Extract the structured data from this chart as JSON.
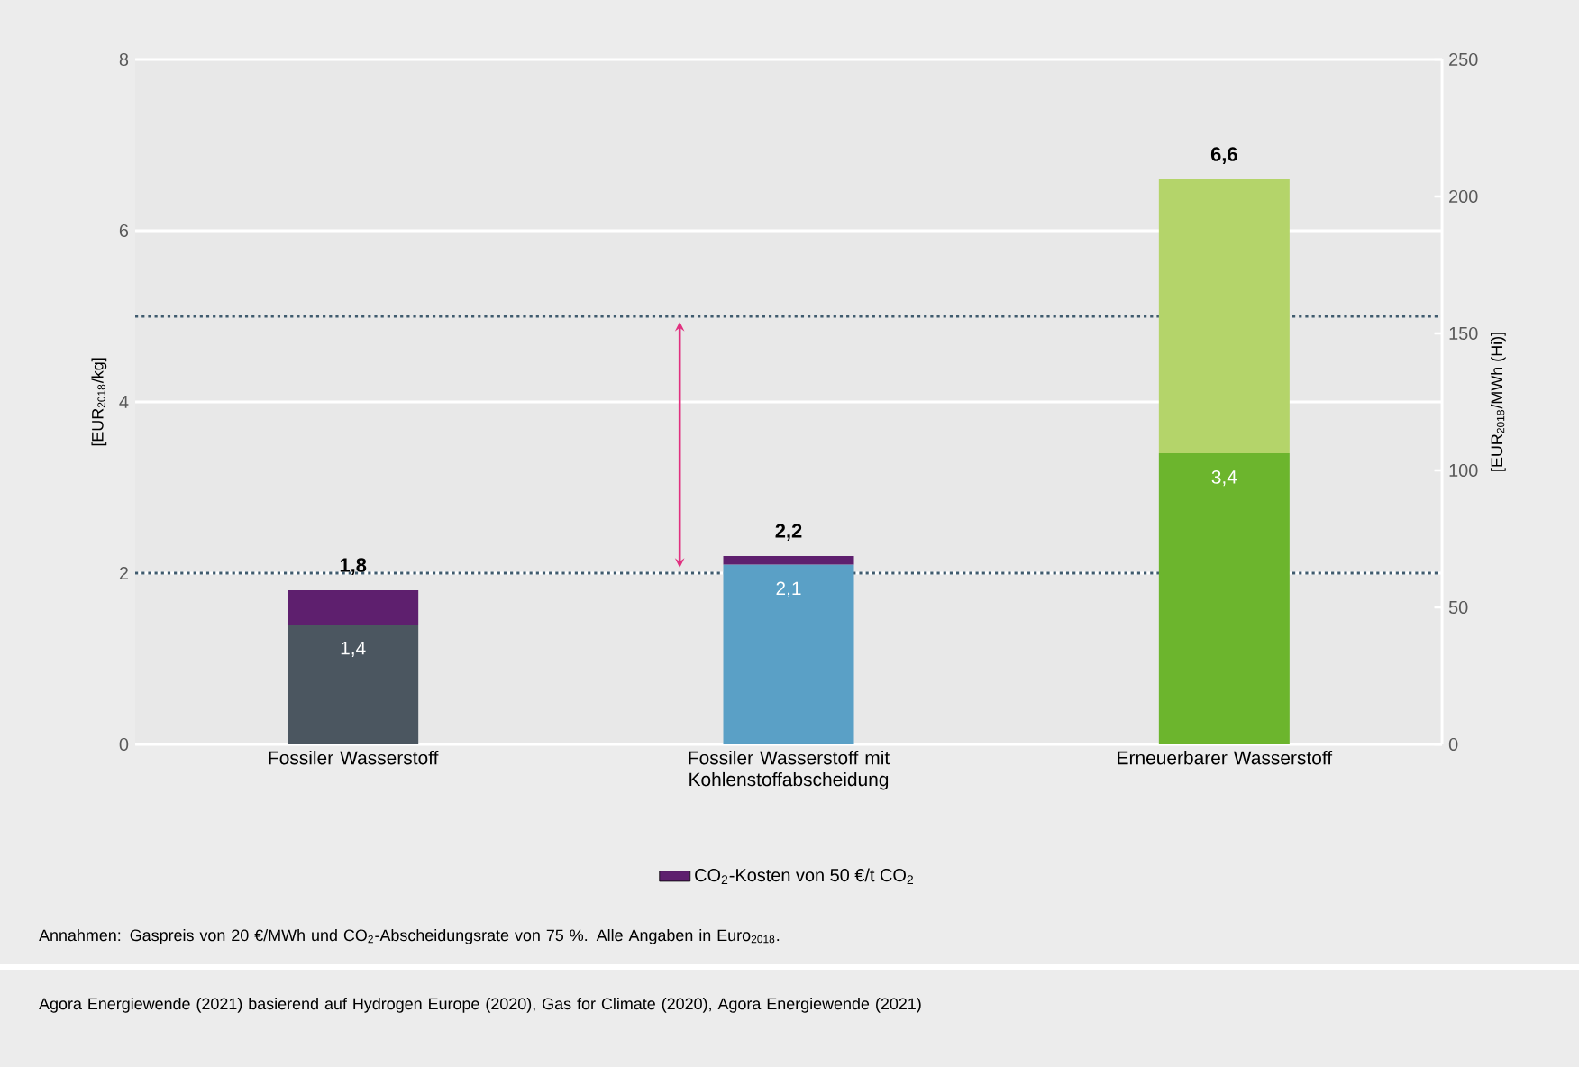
{
  "chart_data": {
    "type": "bar",
    "stacked": true,
    "categories": [
      "Fossiler Wasserstoff",
      "Fossiler Wasserstoff mit Kohlenstoffabscheidung",
      "Erneuerbarer Wasserstoff"
    ],
    "ylabel": "[EUR$_{2018}$/kg]",
    "y2label": "[EUR$_{2018}$/MWh (Hi)]",
    "series": [
      {
        "colors": [
          "#4b5660",
          "#5aa0c6",
          "#6cb52d"
        ],
        "values": [
          1.4,
          2.1,
          3.4
        ],
        "value_labels": [
          "1,4",
          "2,1",
          "3,4"
        ]
      },
      {
        "name": "CO$_{2}$-Kosten von 50 €/t CO$_{2}$",
        "color": "#5e1f6e",
        "values": [
          0.4,
          0.1,
          null
        ]
      },
      {
        "color": "#b4d46a",
        "values": [
          null,
          null,
          3.2
        ]
      }
    ],
    "totals": [
      "1,8",
      "2,2",
      "6,6"
    ],
    "ylim": [
      0,
      8
    ],
    "yticks": [
      0,
      2,
      4,
      6,
      8
    ],
    "y2lim": [
      0,
      250
    ],
    "y2ticks": [
      0,
      50,
      100,
      150,
      200,
      250
    ],
    "grid": "y",
    "legend": "bottom",
    "ref_lines": [
      {
        "axis": "y",
        "value": 5.0,
        "color": "#3f5b6e",
        "line_style": "dotted"
      },
      {
        "axis": "y",
        "value": 2.0,
        "color": "#3f5b6e",
        "line_style": "dotted"
      }
    ],
    "annotations": [
      "Annahmen: Gaspreis von 20 €/MWh und CO$_{2}$-Abscheidungsrate von 75 %. Alle Angaben in Euro$_{2018}$.",
      "Agora Energiewende (2021) basierend auf Hydrogen Europe (2020), Gas for Climate (2020), Agora Energiewende (2021)"
    ]
  }
}
